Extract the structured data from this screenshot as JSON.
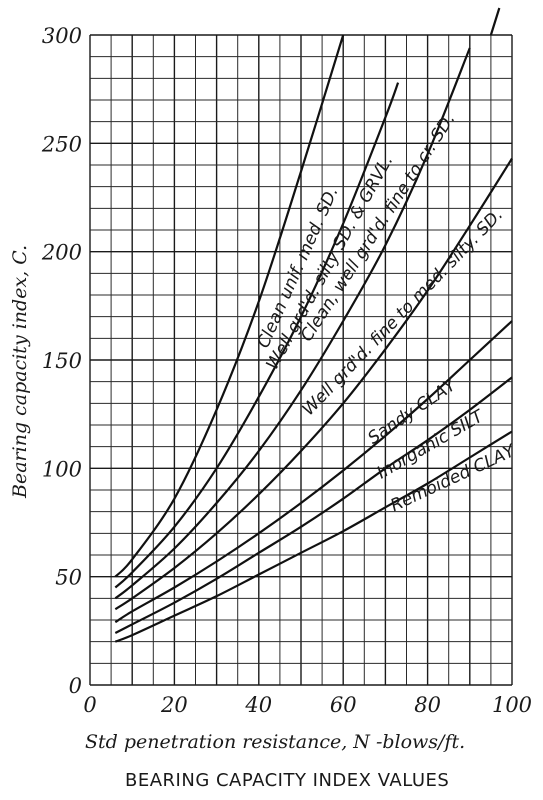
{
  "chart_data": {
    "type": "line",
    "title": "BEARING CAPACITY INDEX VALUES",
    "xlabel": "Std penetration resistance, N -blows/ft.",
    "ylabel": "Bearing capacity index, C.",
    "xlim": [
      0,
      100
    ],
    "ylim": [
      0,
      300
    ],
    "x_ticks": [
      "0",
      "20",
      "40",
      "60",
      "80",
      "100"
    ],
    "y_ticks": [
      "0",
      "50",
      "100",
      "150",
      "200",
      "250",
      "300"
    ],
    "grid": true,
    "series": [
      {
        "name": "Clean unif. med. SD.",
        "x": [
          6,
          10,
          20,
          30,
          40,
          50,
          60
        ],
        "y": [
          50,
          58,
          86,
          127,
          177,
          237,
          300
        ]
      },
      {
        "name": "Well grd'd. silty SD. & GRVL.",
        "x": [
          6,
          10,
          20,
          30,
          40,
          50,
          60,
          70,
          73
        ],
        "y": [
          45,
          52,
          73,
          100,
          133,
          170,
          213,
          262,
          278
        ]
      },
      {
        "name": "Clean, well grd'd. fine to cr. SD.",
        "x": [
          6,
          10,
          20,
          30,
          40,
          50,
          60,
          70,
          80,
          90
        ],
        "y": [
          40,
          46,
          63,
          84,
          108,
          136,
          168,
          203,
          245,
          294
        ]
      },
      {
        "name": "Well grd'd. fine to med. silty. SD.",
        "x": [
          6,
          10,
          20,
          30,
          40,
          50,
          60,
          70,
          80,
          90,
          100
        ],
        "y": [
          35,
          40,
          54,
          70,
          88,
          108,
          130,
          155,
          182,
          212,
          243
        ]
      },
      {
        "name": "Sandy CLAY",
        "x": [
          6,
          10,
          20,
          30,
          40,
          50,
          60,
          70,
          80,
          90,
          100
        ],
        "y": [
          29,
          34,
          45,
          57,
          70,
          84,
          99,
          115,
          132,
          150,
          168
        ]
      },
      {
        "name": "Inorganic SILT",
        "x": [
          6,
          10,
          20,
          30,
          40,
          50,
          60,
          70,
          80,
          90,
          100
        ],
        "y": [
          24,
          28,
          38,
          49,
          61,
          73,
          86,
          100,
          113,
          127,
          142
        ]
      },
      {
        "name": "Remoided CLAY",
        "x": [
          6,
          10,
          20,
          30,
          40,
          50,
          60,
          70,
          80,
          90,
          100
        ],
        "y": [
          20,
          23,
          32,
          41,
          51,
          61,
          71,
          82,
          93,
          105,
          117
        ]
      }
    ]
  }
}
